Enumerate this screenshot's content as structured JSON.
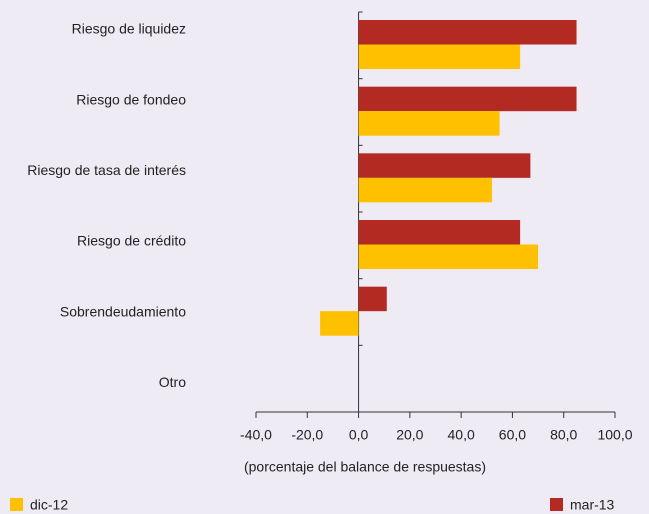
{
  "chart_data": {
    "type": "hbar",
    "categories": [
      "Riesgo de liquidez",
      "Riesgo de fondeo",
      "Riesgo de tasa de interés",
      "Riesgo de crédito",
      "Sobrendeudamiento",
      "Otro"
    ],
    "series": [
      {
        "name": "mar-13",
        "color": "#b22a21",
        "values": [
          85,
          85,
          67,
          63,
          11,
          0
        ]
      },
      {
        "name": "dic-12",
        "color": "#ffc000",
        "values": [
          63,
          55,
          52,
          70,
          -15,
          0
        ]
      }
    ],
    "xlabel": "(porcentaje del balance de respuestas)",
    "xlim": [
      -40,
      100
    ],
    "xticks": [
      {
        "value": -40,
        "label": "-40,0"
      },
      {
        "value": -20,
        "label": "-20,0"
      },
      {
        "value": 0,
        "label": "0,0"
      },
      {
        "value": 20,
        "label": "20,0"
      },
      {
        "value": 40,
        "label": "40,0"
      },
      {
        "value": 60,
        "label": "60,0"
      },
      {
        "value": 80,
        "label": "80,0"
      },
      {
        "value": 100,
        "label": "100,0"
      }
    ],
    "legend": "bottom"
  }
}
